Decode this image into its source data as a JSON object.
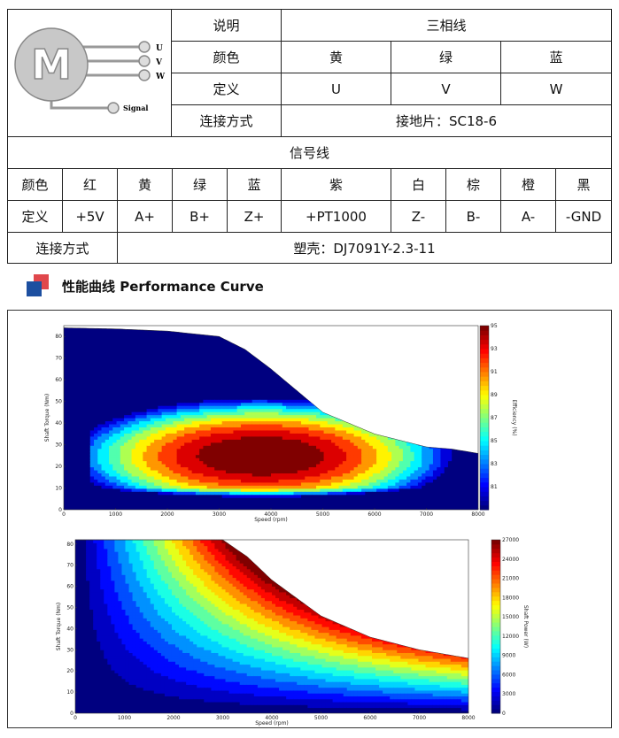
{
  "motor": {
    "letter": "M",
    "pins": [
      "U",
      "V",
      "W"
    ],
    "signal_label": "Signal"
  },
  "phase_table": {
    "header_label": "说明",
    "header_value": "三相线",
    "color_label": "颜色",
    "colors": [
      "黄",
      "绿",
      "蓝"
    ],
    "def_label": "定义",
    "defs": [
      "U",
      "V",
      "W"
    ],
    "conn_label": "连接方式",
    "conn_value": "接地片：SC18-6"
  },
  "signal_table": {
    "title": "信号线",
    "color_label": "颜色",
    "colors": [
      "红",
      "黄",
      "绿",
      "蓝",
      "紫",
      "白",
      "棕",
      "橙",
      "黑"
    ],
    "def_label": "定义",
    "defs": [
      "+5V",
      "A+",
      "B+",
      "Z+",
      "+PT1000",
      "Z-",
      "B-",
      "A-",
      "-GND"
    ],
    "conn_label": "连接方式",
    "conn_value": "塑壳：DJ7091Y-2.3-11"
  },
  "section": {
    "title": "性能曲线 Performance Curve",
    "icon": "stacked-squares-icon",
    "icon_colors": [
      "#e0474c",
      "#1d4fa0"
    ]
  },
  "chart_data": [
    {
      "type": "heatmap",
      "xlabel": "Speed (rpm)",
      "ylabel": "Shaft Torque (Nm)",
      "xlim": [
        0,
        8000
      ],
      "ylim": [
        0,
        85
      ],
      "x_ticks": [
        "0",
        "1000",
        "2000",
        "3000",
        "4000",
        "5000",
        "6000",
        "7000",
        "8000"
      ],
      "y_ticks": [
        "0",
        "10",
        "20",
        "30",
        "40",
        "50",
        "60",
        "70",
        "80"
      ],
      "colorbar_label": "Efficiency (%)",
      "colorbar_range": [
        79,
        95
      ],
      "colorbar_ticks": [
        "81",
        "83",
        "85",
        "87",
        "89",
        "91",
        "93",
        "95"
      ],
      "max_torque_curve": [
        [
          0,
          84
        ],
        [
          1000,
          83.5
        ],
        [
          2000,
          82.5
        ],
        [
          3000,
          80
        ],
        [
          3500,
          74
        ],
        [
          4000,
          65
        ],
        [
          5000,
          45
        ],
        [
          6000,
          35
        ],
        [
          7000,
          29
        ],
        [
          7500,
          28
        ],
        [
          8000,
          26
        ]
      ],
      "peak_region_center": [
        3800,
        25
      ],
      "peak_efficiency": 95
    },
    {
      "type": "heatmap",
      "xlabel": "Speed (rpm)",
      "ylabel": "Shaft Torque (Nm)",
      "xlim": [
        0,
        8000
      ],
      "ylim": [
        0,
        82
      ],
      "x_ticks": [
        "0",
        "1000",
        "2000",
        "3000",
        "4000",
        "5000",
        "6000",
        "7000",
        "8000"
      ],
      "y_ticks": [
        "0",
        "10",
        "20",
        "30",
        "40",
        "50",
        "60",
        "70",
        "80"
      ],
      "colorbar_label": "Shaft Power (W)",
      "colorbar_range": [
        0,
        27000
      ],
      "colorbar_ticks": [
        "0",
        "3000",
        "6000",
        "9000",
        "12000",
        "15000",
        "18000",
        "21000",
        "24000",
        "27000"
      ],
      "max_torque_curve": [
        [
          0,
          82
        ],
        [
          3000,
          82
        ],
        [
          3500,
          74
        ],
        [
          4000,
          63
        ],
        [
          5000,
          46
        ],
        [
          6000,
          36
        ],
        [
          7000,
          30
        ],
        [
          8000,
          26
        ]
      ]
    }
  ]
}
